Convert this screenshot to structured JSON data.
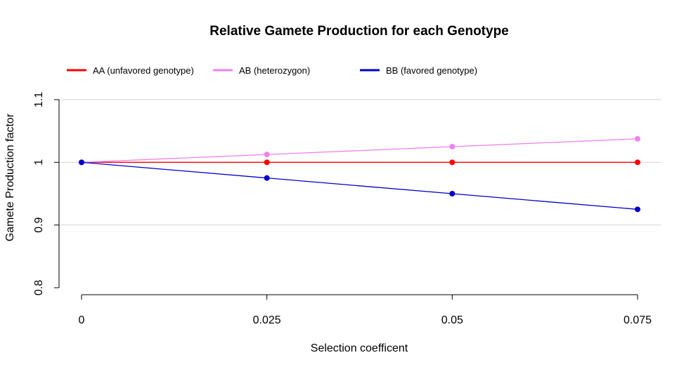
{
  "chart_data": {
    "type": "line",
    "title": "Relative Gamete Production for each Genotype",
    "xlabel": "Selection coefficent",
    "ylabel": "Gamete Production factor",
    "x": [
      0,
      0.025,
      0.05,
      0.075
    ],
    "x_tick_labels": [
      "0",
      "0.025",
      "0.05",
      "0.075"
    ],
    "y_tick_values": [
      0.8,
      0.9,
      1,
      1.1
    ],
    "y_tick_labels": [
      "0.8",
      "0.9",
      "1",
      "1.1"
    ],
    "xlim": [
      0,
      0.075
    ],
    "ylim": [
      0.8,
      1.1
    ],
    "grid": "horizontal",
    "legend_position": "top",
    "series": [
      {
        "name": "AA (unfavored genotype)",
        "color": "#ff0000",
        "values": [
          1,
          1,
          1,
          1
        ]
      },
      {
        "name": "AB (heterozygon)",
        "color": "#ee82ee",
        "values": [
          1,
          1.0125,
          1.025,
          1.0375
        ]
      },
      {
        "name": "BB (favored genotype)",
        "color": "#0000cd",
        "values": [
          1,
          0.975,
          0.95,
          0.925
        ]
      }
    ]
  }
}
